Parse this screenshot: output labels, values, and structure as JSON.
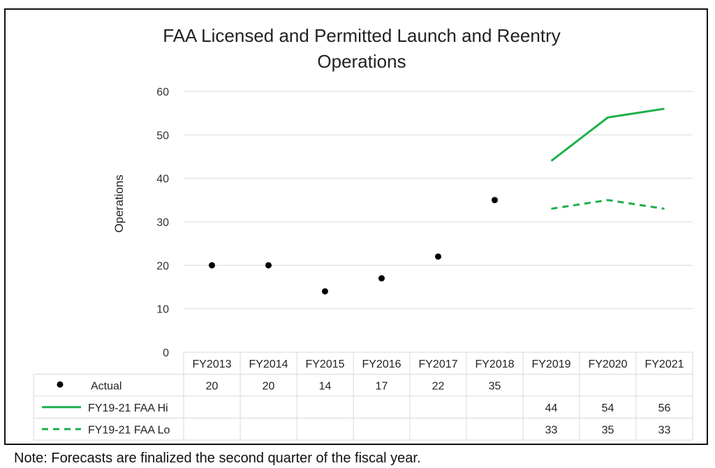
{
  "chart_data": {
    "type": "line",
    "title_lines": [
      "FAA Licensed and Permitted Launch and Reentry",
      "Operations"
    ],
    "xlabel": "",
    "ylabel": "Operations",
    "ylim": [
      0,
      60
    ],
    "yticks": [
      0,
      10,
      20,
      30,
      40,
      50,
      60
    ],
    "grid": true,
    "categories": [
      "FY2013",
      "FY2014",
      "FY2015",
      "FY2016",
      "FY2017",
      "FY2018",
      "FY2019",
      "FY2020",
      "FY2021"
    ],
    "series": [
      {
        "name": "Actual",
        "style": "markers",
        "color": "#000000",
        "values": [
          20,
          20,
          14,
          17,
          22,
          35,
          null,
          null,
          null
        ]
      },
      {
        "name": "FY19-21 FAA Hi",
        "style": "solid",
        "color": "#1db04b",
        "values": [
          null,
          null,
          null,
          null,
          null,
          null,
          44,
          54,
          56
        ]
      },
      {
        "name": "FY19-21 FAA Lo",
        "style": "dashed",
        "color": "#1db04b",
        "values": [
          null,
          null,
          null,
          null,
          null,
          null,
          33,
          35,
          33
        ]
      }
    ],
    "legend_placement": "data-table"
  },
  "note": "Note: Forecasts are finalized the second quarter of the fiscal year."
}
